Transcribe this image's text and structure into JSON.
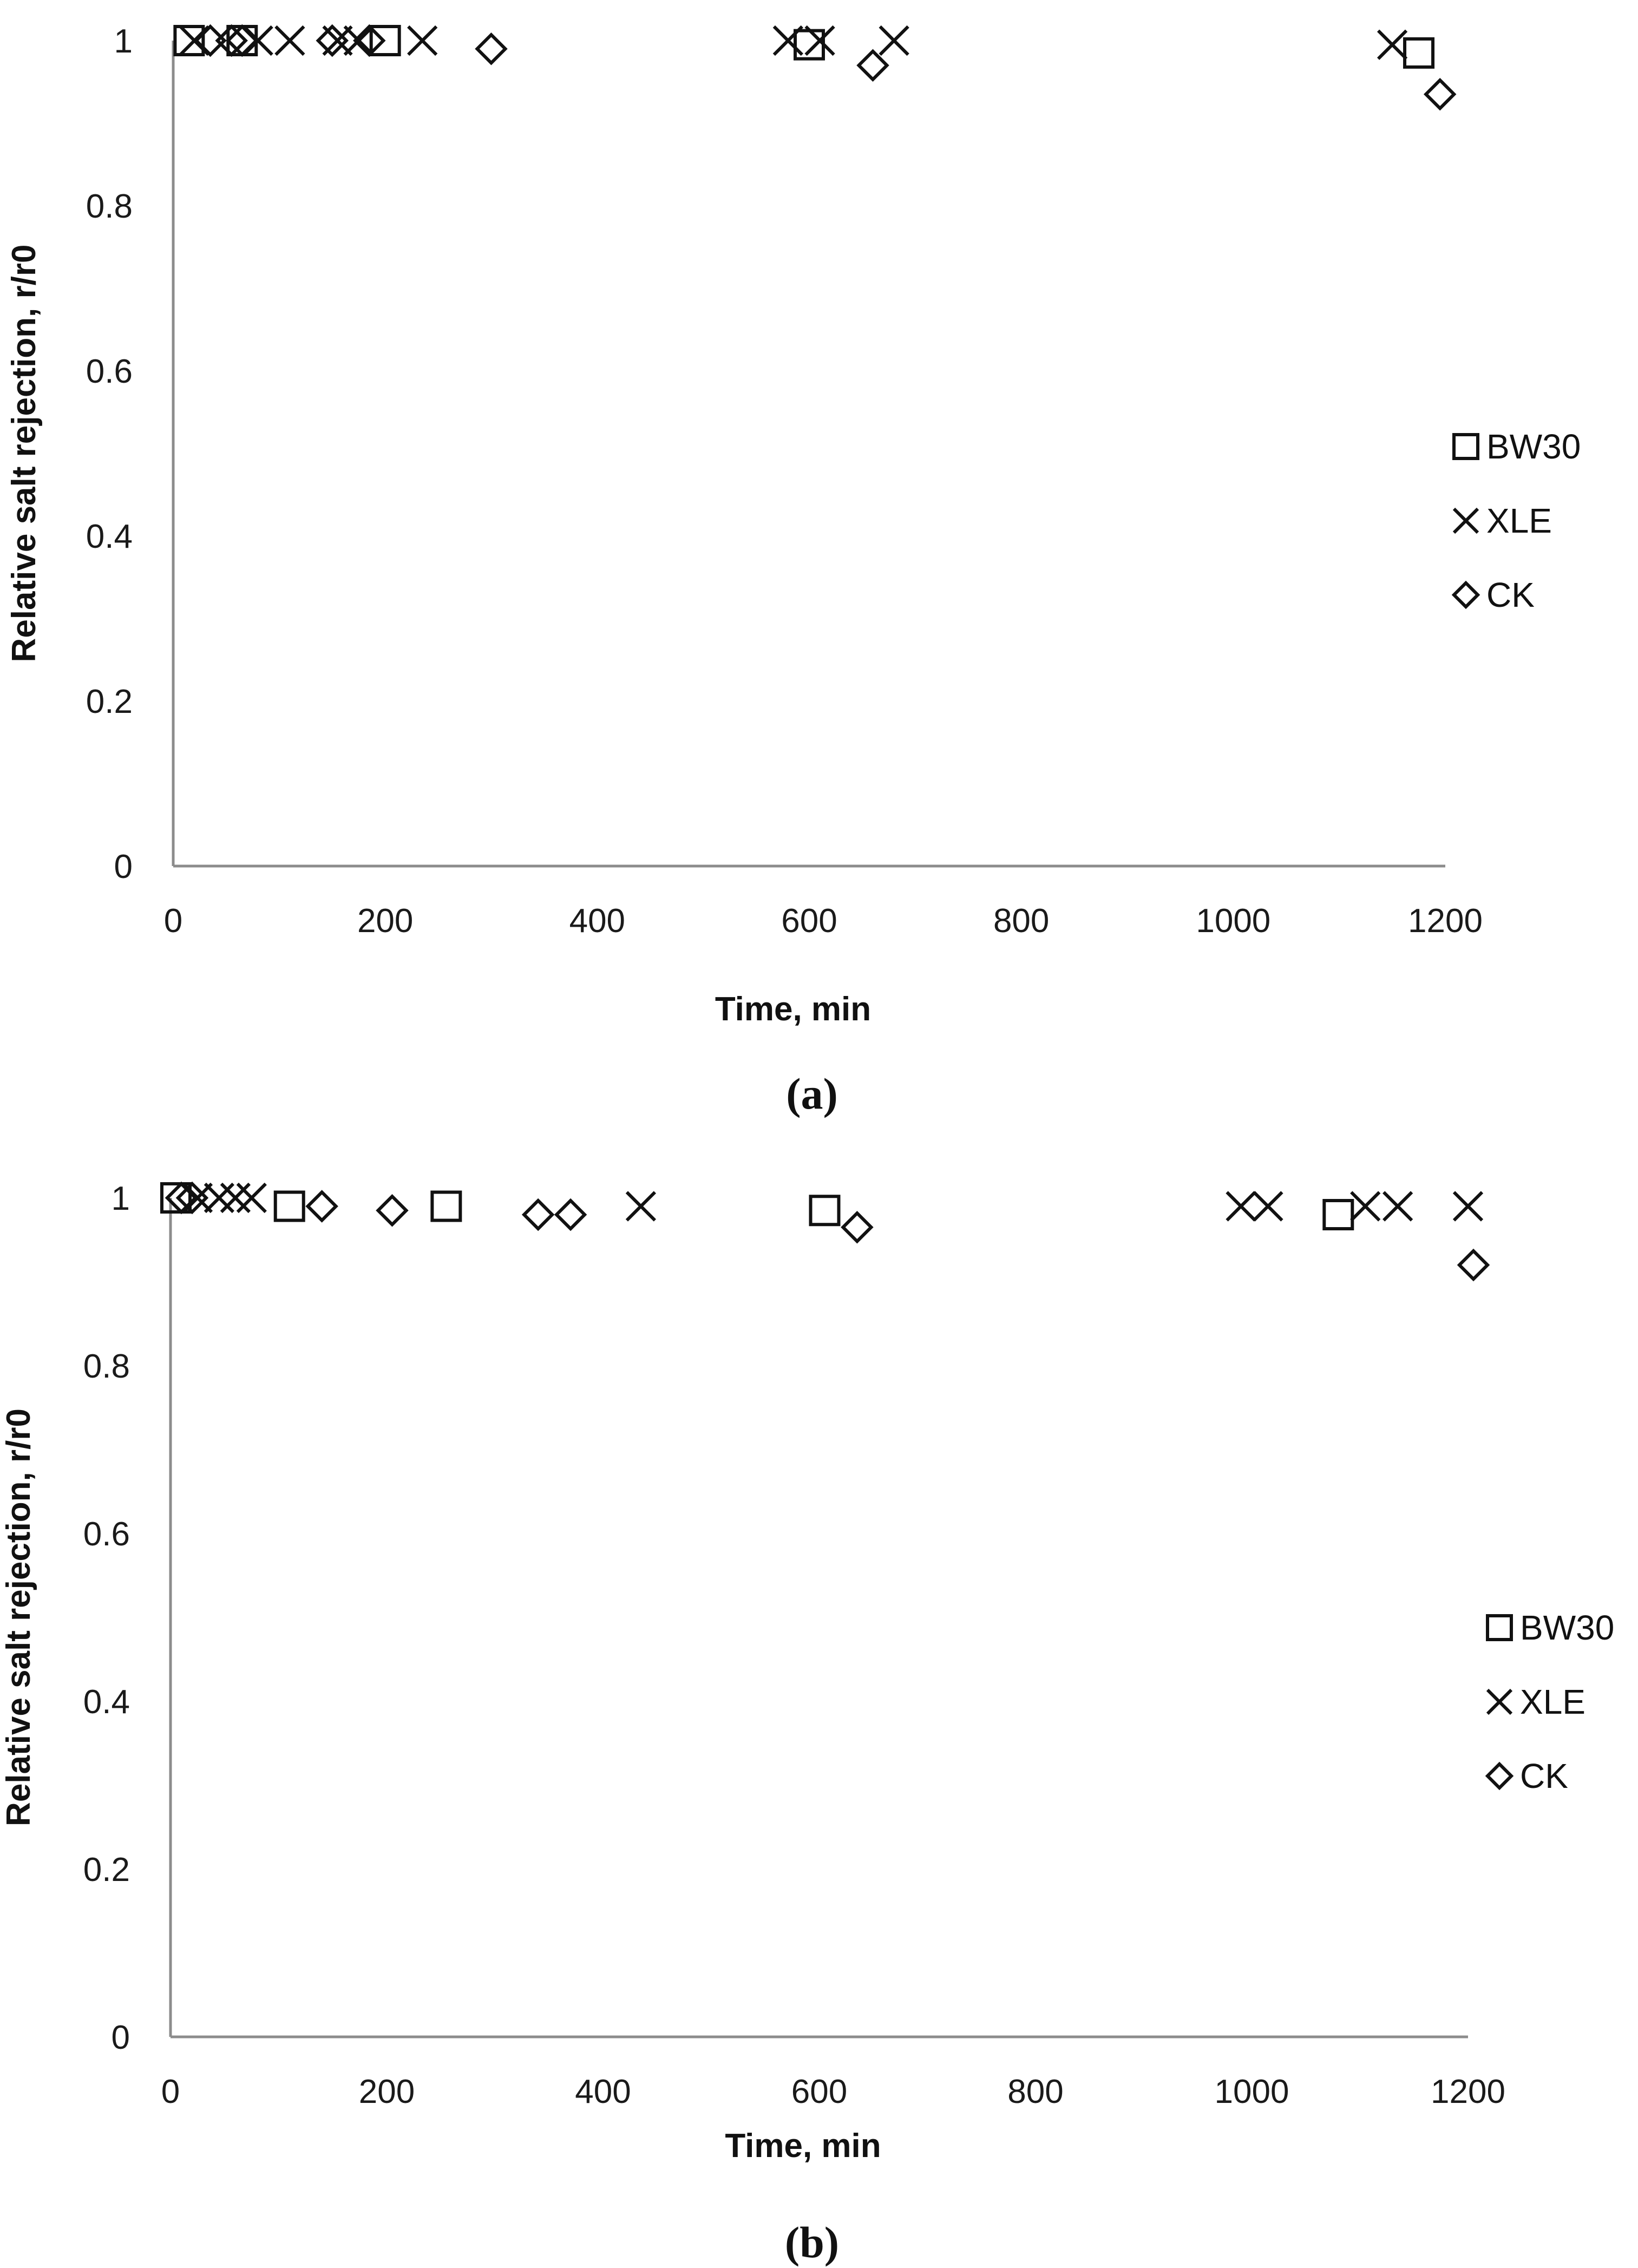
{
  "chart_data": [
    {
      "type": "scatter",
      "panel_label": "(a)",
      "xlabel": "Time, min",
      "ylabel": "Relative salt rejection, r/r0",
      "xlim": [
        0,
        1200
      ],
      "ylim": [
        0,
        1
      ],
      "x_ticks": [
        0,
        200,
        400,
        600,
        800,
        1000,
        1200
      ],
      "y_ticks": [
        0,
        0.2,
        0.4,
        0.6,
        0.8,
        1
      ],
      "legend_position": "right",
      "series": [
        {
          "name": "BW30",
          "marker": "square",
          "x": [
            15,
            65,
            200,
            600,
            1175
          ],
          "y": [
            1.0,
            1.0,
            1.0,
            0.995,
            0.985
          ]
        },
        {
          "name": "XLE",
          "marker": "x",
          "x": [
            20,
            80,
            110,
            155,
            175,
            235,
            580,
            610,
            680,
            1150
          ],
          "y": [
            1.0,
            1.0,
            1.0,
            1.0,
            1.0,
            1.0,
            1.0,
            1.0,
            1.0,
            0.995
          ]
        },
        {
          "name": "CK",
          "marker": "diamond",
          "x": [
            35,
            55,
            65,
            150,
            185,
            300,
            660,
            1195
          ],
          "y": [
            1.0,
            1.0,
            1.0,
            1.0,
            1.0,
            0.99,
            0.97,
            0.935
          ]
        }
      ]
    },
    {
      "type": "scatter",
      "panel_label": "(b)",
      "xlabel": "Time, min",
      "ylabel": "Relative salt rejection, r/r0",
      "xlim": [
        0,
        1200
      ],
      "ylim": [
        0,
        1
      ],
      "x_ticks": [
        0,
        200,
        400,
        600,
        800,
        1000,
        1200
      ],
      "y_ticks": [
        0,
        0.2,
        0.4,
        0.6,
        0.8,
        1
      ],
      "legend_position": "right",
      "series": [
        {
          "name": "BW30",
          "marker": "square",
          "x": [
            5,
            110,
            255,
            605,
            1080
          ],
          "y": [
            1.0,
            0.99,
            0.99,
            0.985,
            0.98
          ]
        },
        {
          "name": "XLE",
          "marker": "x",
          "x": [
            25,
            45,
            60,
            75,
            435,
            990,
            1015,
            1105,
            1135,
            1200
          ],
          "y": [
            1.0,
            1.0,
            1.0,
            1.0,
            0.99,
            0.99,
            0.99,
            0.99,
            0.99,
            0.99
          ]
        },
        {
          "name": "CK",
          "marker": "diamond",
          "x": [
            10,
            20,
            140,
            205,
            340,
            370,
            635,
            1205
          ],
          "y": [
            1.0,
            1.0,
            0.99,
            0.985,
            0.98,
            0.98,
            0.965,
            0.92
          ]
        }
      ]
    }
  ]
}
